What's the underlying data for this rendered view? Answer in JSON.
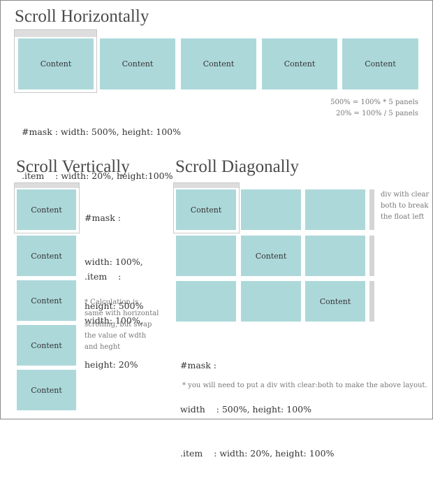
{
  "horizontal": {
    "title": "Scroll Horizontally",
    "panels": [
      "Content",
      "Content",
      "Content",
      "Content",
      "Content"
    ],
    "code": [
      "#mask : width: 500%, height: 100%",
      ".item    : width: 20%, height:100%"
    ],
    "calc": [
      "500% = 100% * 5 panels",
      "20% = 100% / 5 panels"
    ]
  },
  "vertical": {
    "title": "Scroll Vertically",
    "panels": [
      "Content",
      "Content",
      "Content",
      "Content",
      "Content"
    ],
    "mask_code": [
      "#mask :",
      "width: 100%,",
      "height: 500%"
    ],
    "item_code": [
      ".item    :",
      "width: 100%,",
      "height: 20%"
    ],
    "note": [
      "* Calculation is",
      "same with horizontal",
      "scrolling, but swap",
      "the value of wdth",
      "and heght"
    ]
  },
  "diagonal": {
    "title": "Scroll Diagonally",
    "panels": [
      "Content",
      "",
      "",
      "",
      "Content",
      "",
      "",
      "",
      "Content"
    ],
    "clear_note": [
      "div with clear",
      "both to break",
      "the float left"
    ],
    "code": [
      "#mask :",
      "width    : 500%, height: 100%",
      ".item    : width: 20%, height: 100%"
    ],
    "footnote": "* you will need to put a div with clear:both to make the above layout."
  },
  "colors": {
    "panel": "#add8da",
    "scroll_strip": "#dddddd",
    "clear_bar": "#d4d4d4",
    "border": "#8a8a8a"
  }
}
